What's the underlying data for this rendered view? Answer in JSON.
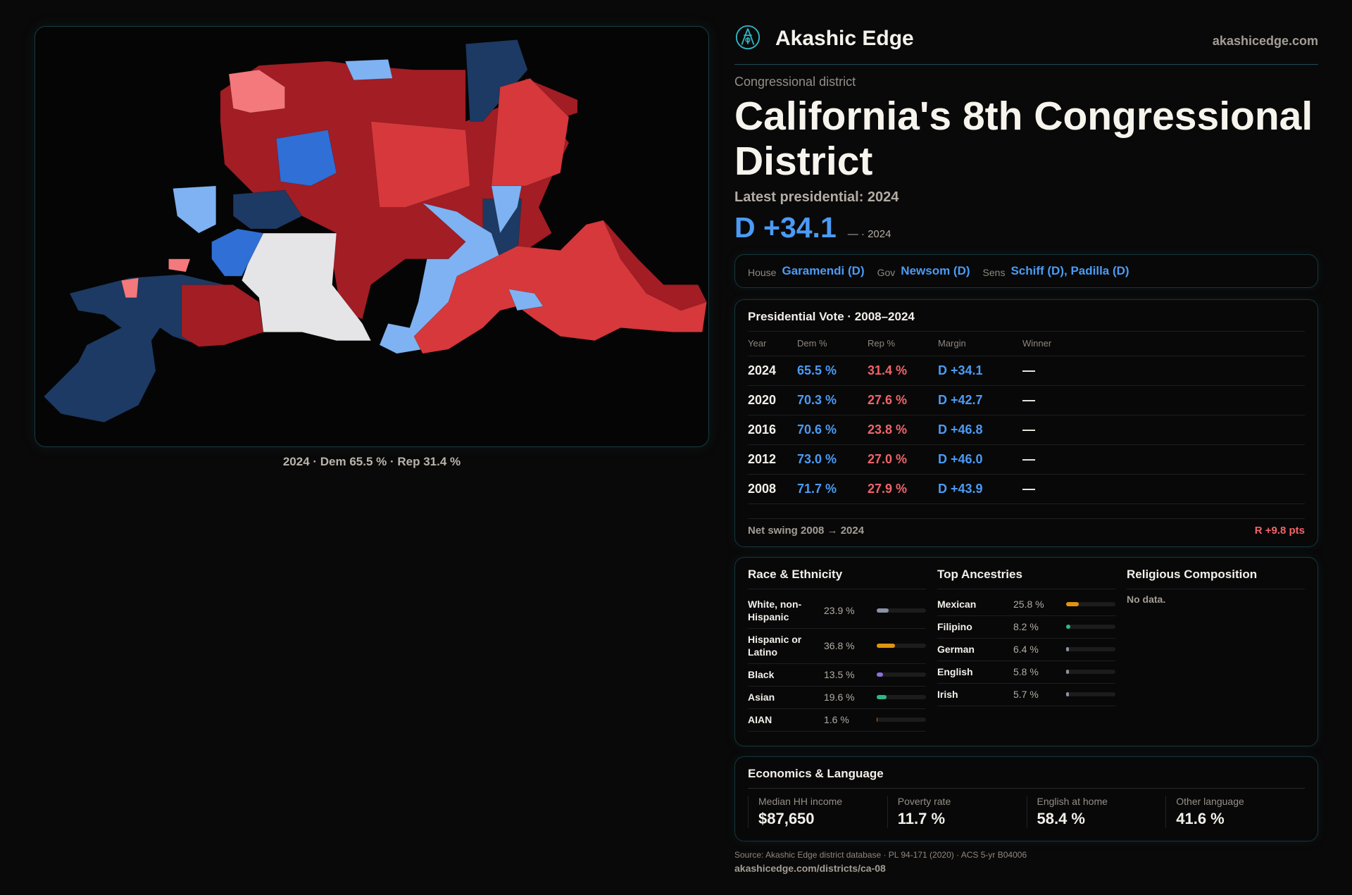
{
  "brand": {
    "name": "Akashic Edge",
    "domain": "akashicedge.com",
    "logo_icon": "compass-figure-logo"
  },
  "map": {
    "caption": "2024 · Dem 65.5 % · Rep 31.4 %",
    "colors": {
      "safe_d": "#1c3a63",
      "likely_d": "#2f6fd6",
      "lean_d": "#7fb2f2",
      "lean_r": "#f3797c",
      "likely_r": "#d6383c",
      "safe_r": "#a31d24",
      "no_data": "#e5e5e8"
    }
  },
  "district": {
    "kind": "Congressional district",
    "title": "California's 8th Congressional District",
    "latest_label": "Latest presidential: 2024",
    "margin": "D +34.1",
    "margin_sub": "— · 2024"
  },
  "officials": [
    {
      "label": "House",
      "value": "Garamendi (D)"
    },
    {
      "label": "Gov",
      "value": "Newsom (D)"
    },
    {
      "label": "Sens",
      "value": "Schiff (D), Padilla (D)"
    }
  ],
  "presidential": {
    "title": "Presidential Vote · 2008–2024",
    "columns": [
      "Year",
      "Dem %",
      "Rep %",
      "Margin",
      "Winner"
    ],
    "rows": [
      {
        "year": "2024",
        "dem": "65.5 %",
        "rep": "31.4 %",
        "margin": "D +34.1",
        "winner": "—"
      },
      {
        "year": "2020",
        "dem": "70.3 %",
        "rep": "27.6 %",
        "margin": "D +42.7",
        "winner": "—"
      },
      {
        "year": "2016",
        "dem": "70.6 %",
        "rep": "23.8 %",
        "margin": "D +46.8",
        "winner": "—"
      },
      {
        "year": "2012",
        "dem": "73.0 %",
        "rep": "27.0 %",
        "margin": "D +46.0",
        "winner": "—"
      },
      {
        "year": "2008",
        "dem": "71.7 %",
        "rep": "27.9 %",
        "margin": "D +43.9",
        "winner": "—"
      }
    ],
    "swing_label": "Net swing 2008 → 2024",
    "swing_value": "R +9.8 pts"
  },
  "race": {
    "title": "Race & Ethnicity",
    "items": [
      {
        "label": "White, non-Hispanic",
        "pct": "23.9 %",
        "value": 23.9,
        "color": "#8a93a3"
      },
      {
        "label": "Hispanic or Latino",
        "pct": "36.8 %",
        "value": 36.8,
        "color": "#e0940f"
      },
      {
        "label": "Black",
        "pct": "13.5 %",
        "value": 13.5,
        "color": "#8d6fe0"
      },
      {
        "label": "Asian",
        "pct": "19.6 %",
        "value": 19.6,
        "color": "#2db88a"
      },
      {
        "label": "AIAN",
        "pct": "1.6 %",
        "value": 1.6,
        "color": "#c8650e"
      }
    ]
  },
  "ancestry": {
    "title": "Top Ancestries",
    "items": [
      {
        "label": "Mexican",
        "pct": "25.8 %",
        "value": 25.8,
        "color": "#e0940f"
      },
      {
        "label": "Filipino",
        "pct": "8.2 %",
        "value": 8.2,
        "color": "#2db88a"
      },
      {
        "label": "German",
        "pct": "6.4 %",
        "value": 6.4,
        "color": "#8a93a3"
      },
      {
        "label": "English",
        "pct": "5.8 %",
        "value": 5.8,
        "color": "#8a93a3"
      },
      {
        "label": "Irish",
        "pct": "5.7 %",
        "value": 5.7,
        "color": "#8a93a3"
      }
    ]
  },
  "religion": {
    "title": "Religious Composition",
    "empty": "No data."
  },
  "economics": {
    "title": "Economics & Language",
    "cells": [
      {
        "label": "Median HH income",
        "value": "$87,650"
      },
      {
        "label": "Poverty rate",
        "value": "11.7 %"
      },
      {
        "label": "English at home",
        "value": "58.4 %"
      },
      {
        "label": "Other language",
        "value": "41.6 %"
      }
    ]
  },
  "footer": {
    "source": "Source: Akashic Edge district database · PL 94-171 (2020) · ACS 5-yr B04006",
    "url": "akashicedge.com/districts/ca-08"
  }
}
